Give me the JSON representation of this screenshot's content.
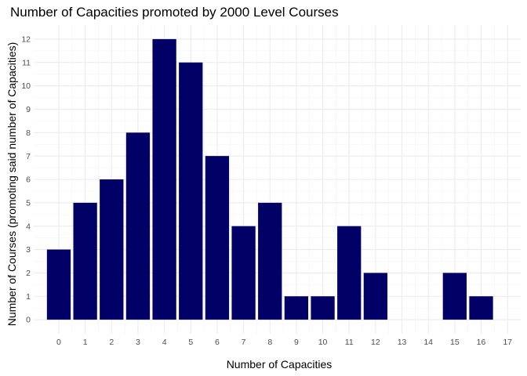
{
  "chart_data": {
    "type": "bar",
    "title": "Number of Capacities promoted by 2000 Level Courses",
    "xlabel": "Number of Capacities",
    "ylabel": "Number of Courses (promoting said number of Capacities)",
    "x": [
      0,
      1,
      2,
      3,
      4,
      5,
      6,
      7,
      8,
      9,
      10,
      11,
      12,
      15,
      16
    ],
    "values": [
      3,
      5,
      6,
      8,
      12,
      11,
      7,
      4,
      5,
      1,
      1,
      4,
      2,
      2,
      1
    ],
    "x_ticks": [
      0,
      1,
      2,
      3,
      4,
      5,
      6,
      7,
      8,
      9,
      10,
      11,
      12,
      13,
      14,
      15,
      16,
      17
    ],
    "y_ticks": [
      0,
      1,
      2,
      3,
      4,
      5,
      6,
      7,
      8,
      9,
      10,
      11,
      12
    ],
    "xlim": [
      -0.95,
      17.5
    ],
    "ylim": [
      -0.6,
      12.6
    ],
    "bar_color": "#000066",
    "grid": true,
    "legend": "none"
  }
}
